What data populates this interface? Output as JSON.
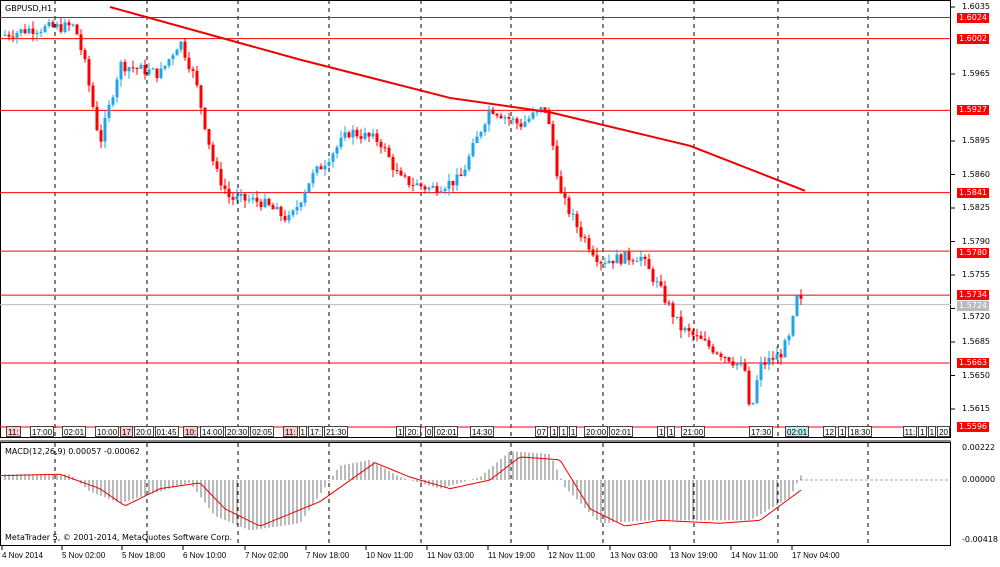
{
  "symbol": "GBPUSD,H1",
  "price_axis": [
    "1.6035",
    "1.5965",
    "1.5895",
    "1.5860",
    "1.5825",
    "1.5790",
    "1.5755",
    "1.5720",
    "1.5685",
    "1.5650",
    "1.5615"
  ],
  "price_axis_values": [
    1.6035,
    1.5965,
    1.5895,
    1.586,
    1.5825,
    1.579,
    1.5755,
    1.572,
    1.5685,
    1.565,
    1.5615
  ],
  "levels": [
    {
      "label": "1.6024",
      "value": 1.6024
    },
    {
      "label": "1.6002",
      "value": 1.6002
    },
    {
      "label": "1.5927",
      "value": 1.5927
    },
    {
      "label": "1.5841",
      "value": 1.5841
    },
    {
      "label": "1.5780",
      "value": 1.578
    },
    {
      "label": "1.5734",
      "value": 1.5734
    },
    {
      "label": "1.5663",
      "value": 1.5663
    },
    {
      "label": "1.5596",
      "value": 1.5596
    }
  ],
  "bid": {
    "label": "1.5724",
    "value": 1.5724
  },
  "macd": {
    "title": "MACD(12,26,9) 0.00057 -0.00062",
    "axis": [
      "0.00222",
      "0.00000",
      "-0.00418"
    ]
  },
  "copyright": "MetaTrader 5, © 2001-2014, MetaQuotes Software Corp.",
  "time_axis": [
    "4 Nov 2014",
    "5 Nov 02:00",
    "5 Nov 18:00",
    "6 Nov 10:00",
    "7 Nov 02:00",
    "7 Nov 18:00",
    "10 Nov 11:00",
    "11 Nov 03:00",
    "11 Nov 19:00",
    "12 Nov 11:00",
    "13 Nov 03:00",
    "13 Nov 19:00",
    "14 Nov 11:00",
    "17 Nov 04:00"
  ],
  "event_labels": [
    "11:",
    "17:00",
    "02:01",
    "10:00",
    "17",
    "20:0",
    "01:45",
    "10:",
    "14:00",
    "20:30",
    "02:05",
    "11:",
    "1",
    "17:",
    "21:30",
    "1",
    "20:",
    "0",
    "02:01",
    "14:30",
    "07",
    "1",
    "1",
    "1",
    "20:00",
    "02:01",
    "1",
    "1",
    "21:00",
    "17:30",
    "02:01",
    "12",
    "1",
    "18:30",
    "11:",
    "1",
    "1",
    "20"
  ],
  "chart_data": {
    "type": "candlestick",
    "price_path": [
      [
        0,
        1.6005
      ],
      [
        30,
        1.6012
      ],
      [
        75,
        1.6015
      ],
      [
        85,
        1.5975
      ],
      [
        100,
        1.5893
      ],
      [
        120,
        1.5975
      ],
      [
        160,
        1.5965
      ],
      [
        180,
        1.6
      ],
      [
        195,
        1.596
      ],
      [
        215,
        1.5865
      ],
      [
        230,
        1.5835
      ],
      [
        260,
        1.5832
      ],
      [
        290,
        1.5812
      ],
      [
        310,
        1.5855
      ],
      [
        350,
        1.5905
      ],
      [
        380,
        1.5895
      ],
      [
        400,
        1.5855
      ],
      [
        430,
        1.5845
      ],
      [
        460,
        1.5855
      ],
      [
        490,
        1.593
      ],
      [
        520,
        1.5912
      ],
      [
        545,
        1.593
      ],
      [
        555,
        1.588
      ],
      [
        560,
        1.584
      ],
      [
        580,
        1.58
      ],
      [
        600,
        1.577
      ],
      [
        640,
        1.5775
      ],
      [
        660,
        1.574
      ],
      [
        680,
        1.57
      ],
      [
        710,
        1.568
      ],
      [
        730,
        1.5668
      ],
      [
        745,
        1.5655
      ],
      [
        750,
        1.5605
      ],
      [
        760,
        1.566
      ],
      [
        780,
        1.5672
      ],
      [
        790,
        1.569
      ],
      [
        797,
        1.573
      ],
      [
        803,
        1.5724
      ]
    ],
    "ma_path": [
      [
        110,
        1.6035
      ],
      [
        300,
        1.598
      ],
      [
        450,
        1.594
      ],
      [
        550,
        1.5925
      ],
      [
        690,
        1.589
      ],
      [
        805,
        1.5843
      ]
    ],
    "macd_hist": [
      [
        0,
        0.0004
      ],
      [
        70,
        0.0004
      ],
      [
        90,
        -0.0008
      ],
      [
        120,
        -0.0016
      ],
      [
        150,
        -0.001
      ],
      [
        190,
        -0.0002
      ],
      [
        215,
        -0.0025
      ],
      [
        250,
        -0.0035
      ],
      [
        300,
        -0.003
      ],
      [
        340,
        0.001
      ],
      [
        370,
        0.0014
      ],
      [
        400,
        0.0002
      ],
      [
        440,
        -0.0006
      ],
      [
        480,
        0.0002
      ],
      [
        510,
        0.002
      ],
      [
        550,
        0.0018
      ],
      [
        565,
        -0.0005
      ],
      [
        600,
        -0.003
      ],
      [
        650,
        -0.0028
      ],
      [
        700,
        -0.0028
      ],
      [
        750,
        -0.0028
      ],
      [
        790,
        -0.0012
      ],
      [
        803,
        0.0006
      ]
    ],
    "macd_signal": [
      [
        0,
        0.0003
      ],
      [
        60,
        0.0004
      ],
      [
        100,
        -0.0006
      ],
      [
        125,
        -0.0018
      ],
      [
        160,
        -0.0006
      ],
      [
        200,
        -0.0002
      ],
      [
        225,
        -0.002
      ],
      [
        260,
        -0.0032
      ],
      [
        320,
        -0.0015
      ],
      [
        375,
        0.0012
      ],
      [
        410,
        0.0002
      ],
      [
        450,
        -0.0006
      ],
      [
        490,
        0.0
      ],
      [
        520,
        0.0016
      ],
      [
        560,
        0.0014
      ],
      [
        590,
        -0.002
      ],
      [
        625,
        -0.0032
      ],
      [
        660,
        -0.0028
      ],
      [
        720,
        -0.003
      ],
      [
        760,
        -0.0028
      ],
      [
        803,
        -0.0006
      ]
    ]
  }
}
